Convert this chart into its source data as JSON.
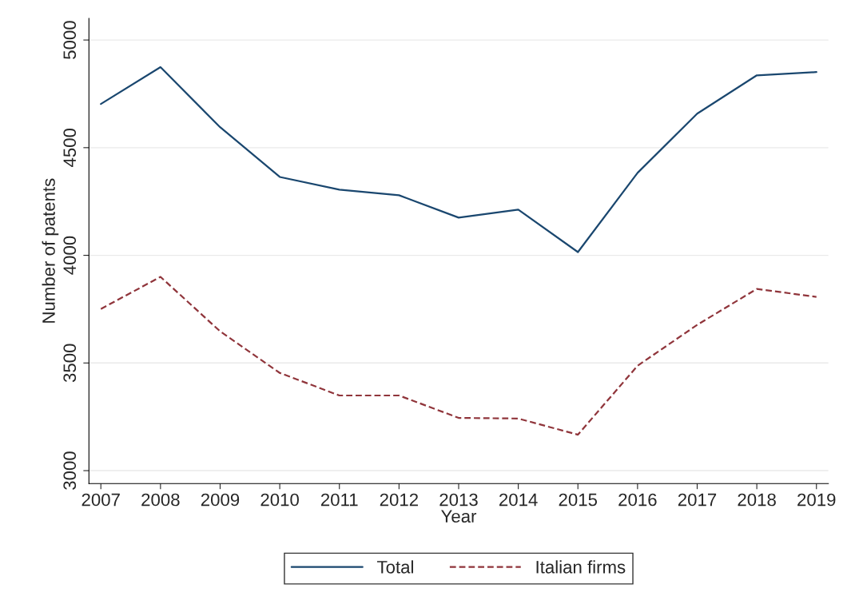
{
  "chart_data": {
    "type": "line",
    "xlabel": "Year",
    "ylabel": "Number of patents",
    "x": [
      2007,
      2008,
      2009,
      2010,
      2011,
      2012,
      2013,
      2014,
      2015,
      2016,
      2017,
      2018,
      2019
    ],
    "series": [
      {
        "name": "Total",
        "color": "#1a476f",
        "line_style": "solid",
        "values": [
          4703,
          4874,
          4595,
          4364,
          4305,
          4279,
          4175,
          4212,
          4015,
          4383,
          4658,
          4836,
          4851
        ]
      },
      {
        "name": "Italian firms",
        "color": "#90353b",
        "line_style": "dashed",
        "values": [
          3751,
          3900,
          3647,
          3454,
          3349,
          3349,
          3245,
          3242,
          3167,
          3487,
          3677,
          3844,
          3807
        ]
      }
    ],
    "xlim": [
      2006.8,
      2019.2
    ],
    "xticks": [
      2007,
      2008,
      2009,
      2010,
      2011,
      2012,
      2013,
      2014,
      2015,
      2016,
      2017,
      2018,
      2019
    ],
    "ylim": [
      2940,
      5100
    ],
    "yticks": [
      3000,
      3500,
      4000,
      4500,
      5000
    ],
    "grid": "y",
    "legend": "bottom",
    "marker": "none"
  }
}
